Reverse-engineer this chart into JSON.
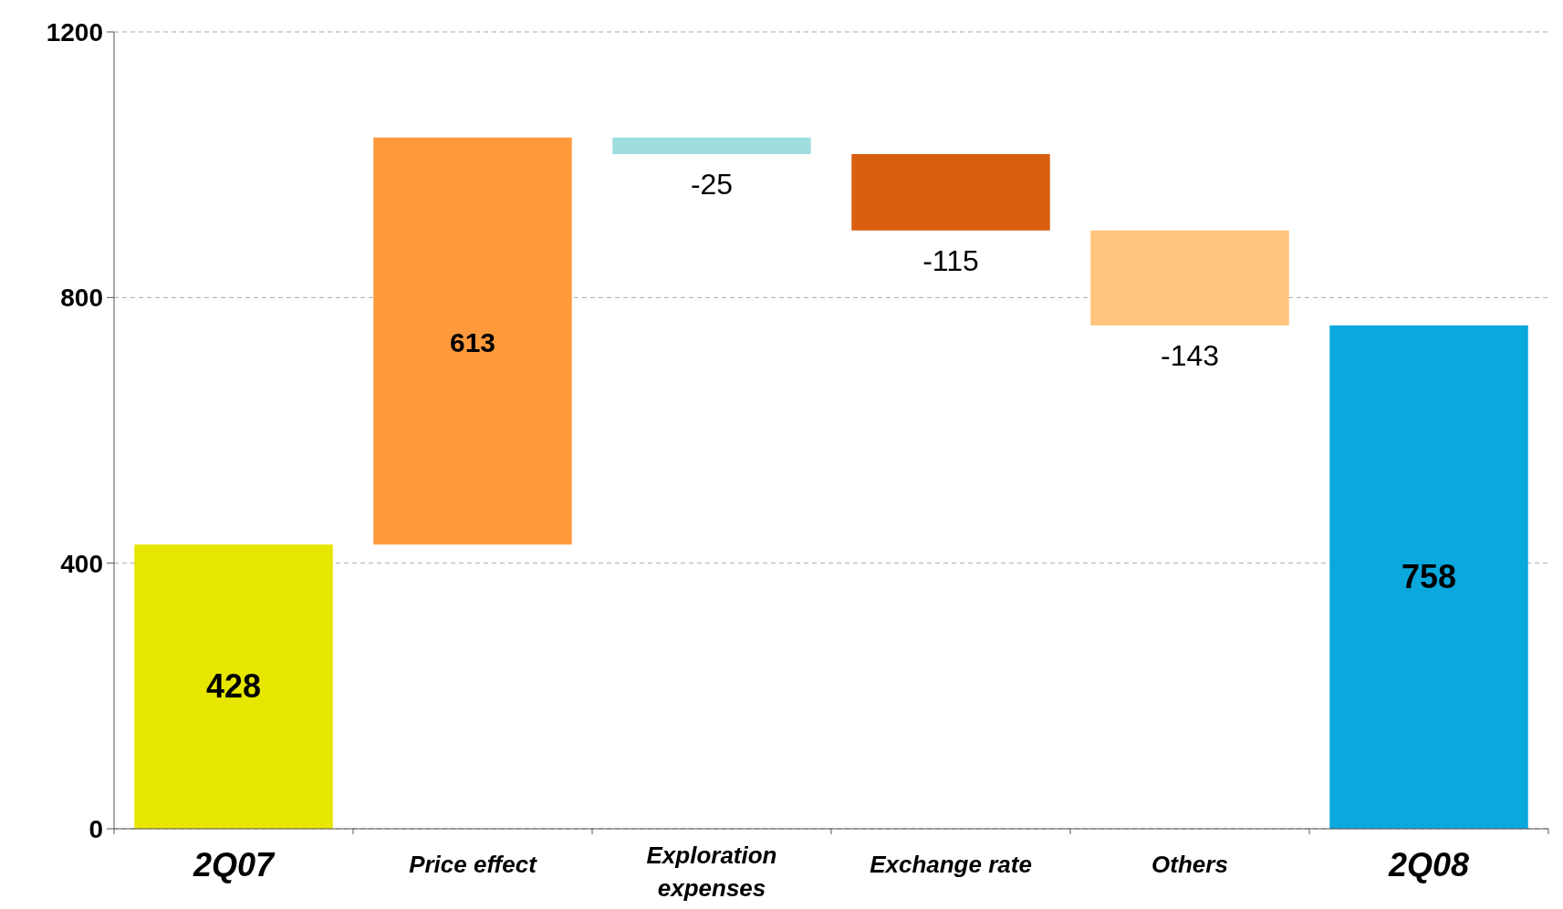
{
  "chart_data": {
    "type": "bar",
    "categories": [
      "2Q07",
      "Price effect",
      "Exploration expenses",
      "Exchange rate",
      "Others",
      "2Q08"
    ],
    "values": [
      428,
      613,
      -25,
      -115,
      -143,
      758
    ],
    "base": [
      0,
      428,
      1041,
      1016,
      901,
      0
    ],
    "colors": [
      "#e6e600",
      "#ff9a3c",
      "#9fdede",
      "#d95f0e",
      "#ffc47e",
      "#0aa8dc"
    ],
    "ylim": [
      0,
      1200
    ],
    "yticks": [
      0,
      400,
      800,
      1200
    ],
    "grid": "y",
    "data_labels": true
  }
}
